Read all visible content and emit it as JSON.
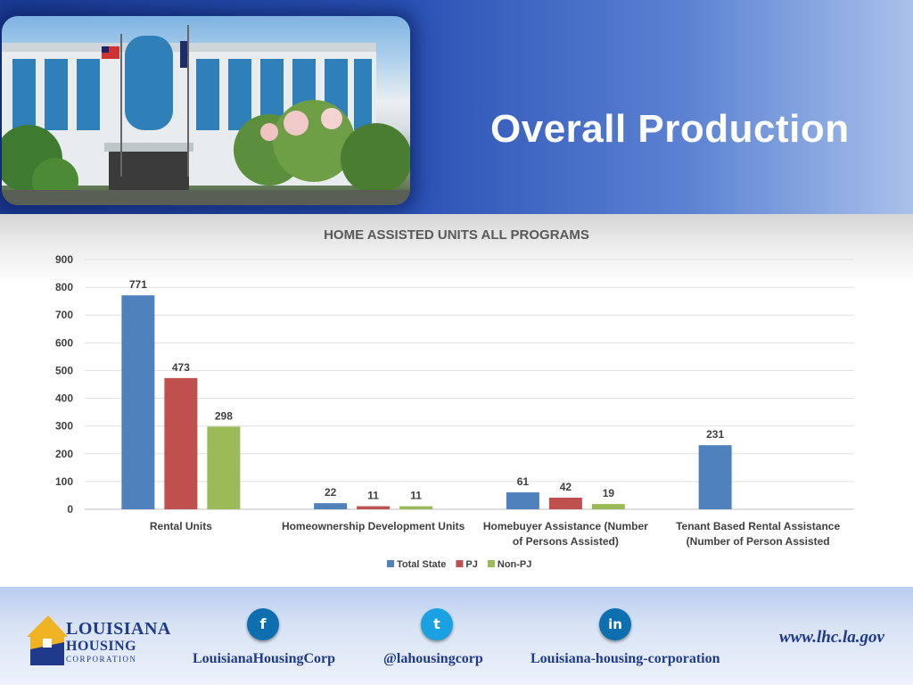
{
  "slide": {
    "title": "Overall Production"
  },
  "chart_data": {
    "type": "bar",
    "title": "HOME ASSISTED UNITS ALL PROGRAMS",
    "categories": [
      [
        "Rental   Units"
      ],
      [
        "Homeownership Development Units"
      ],
      [
        "Homebuyer Assistance       (Number",
        "of Persons Assisted)"
      ],
      [
        "Tenant Based Rental Assistance",
        "(Number of Person Assisted"
      ]
    ],
    "series": [
      {
        "name": "Total State",
        "color": "#4f81bd",
        "values": [
          771,
          22,
          61,
          231
        ]
      },
      {
        "name": "PJ",
        "color": "#c0504d",
        "values": [
          473,
          11,
          42,
          null
        ]
      },
      {
        "name": "Non-PJ",
        "color": "#9bbb59",
        "values": [
          298,
          11,
          19,
          null
        ]
      }
    ],
    "y_ticks": [
      0,
      100,
      200,
      300,
      400,
      500,
      600,
      700,
      800,
      900
    ],
    "ylim": [
      0,
      900
    ],
    "grid": true,
    "legend_position": "bottom"
  },
  "footer": {
    "logo": {
      "line1": "LOUISIANA",
      "line2": "HOUSING",
      "line3": "CORPORATION"
    },
    "facebook": {
      "icon": "facebook-icon",
      "glyph": "f",
      "label": "LouisianaHousingCorp"
    },
    "twitter": {
      "icon": "twitter-icon",
      "glyph": "t",
      "label": "@lahousingcorp"
    },
    "linkedin": {
      "icon": "linkedin-icon",
      "glyph": "in",
      "label": "Louisiana-housing-corporation"
    },
    "website": "www.lhc.la.gov"
  }
}
